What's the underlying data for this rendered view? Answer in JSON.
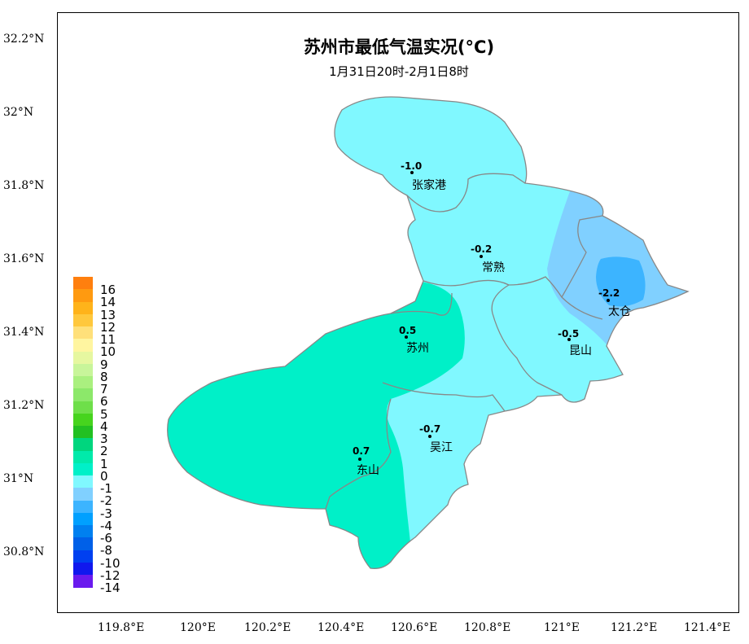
{
  "title": "苏州市最低气温实况(°C)",
  "subtitle": "1月31日20时-2月1日8时",
  "y_ticks": [
    "32.2°N",
    "32°N",
    "31.8°N",
    "31.6°N",
    "31.4°N",
    "31.2°N",
    "31°N",
    "30.8°N"
  ],
  "x_ticks": [
    "119.8°E",
    "120°E",
    "120.2°E",
    "120.4°E",
    "120.6°E",
    "120.8°E",
    "121°E",
    "121.2°E",
    "121.4°E"
  ],
  "legend": {
    "labels": [
      "16",
      "14",
      "13",
      "12",
      "11",
      "10",
      "9",
      "8",
      "7",
      "6",
      "5",
      "4",
      "3",
      "2",
      "1",
      "0",
      "-1",
      "-2",
      "-3",
      "-4",
      "-6",
      "-8",
      "-10",
      "-12",
      "-14"
    ],
    "colors": [
      "#ff7f0e",
      "#ff9a10",
      "#ffb31a",
      "#ffc83d",
      "#ffe07a",
      "#fff5a0",
      "#e6f7a0",
      "#c8f59a",
      "#aaf07f",
      "#8ce86a",
      "#6edf4a",
      "#46d41e",
      "#22c022",
      "#00d67e",
      "#00eaaa",
      "#00f0c8",
      "#80f8ff",
      "#80d0ff",
      "#3cb4ff",
      "#00a0ff",
      "#0080f0",
      "#0060e8",
      "#0040f0",
      "#1018ee",
      "#6a1aee"
    ]
  },
  "stations": [
    {
      "name": "张家港",
      "value": "-1.0"
    },
    {
      "name": "常熟",
      "value": "-0.2"
    },
    {
      "name": "太仓",
      "value": "-2.2"
    },
    {
      "name": "苏州",
      "value": "0.5"
    },
    {
      "name": "昆山",
      "value": "-0.5"
    },
    {
      "name": "吴江",
      "value": "-0.7"
    },
    {
      "name": "东山",
      "value": "0.7"
    }
  ]
}
